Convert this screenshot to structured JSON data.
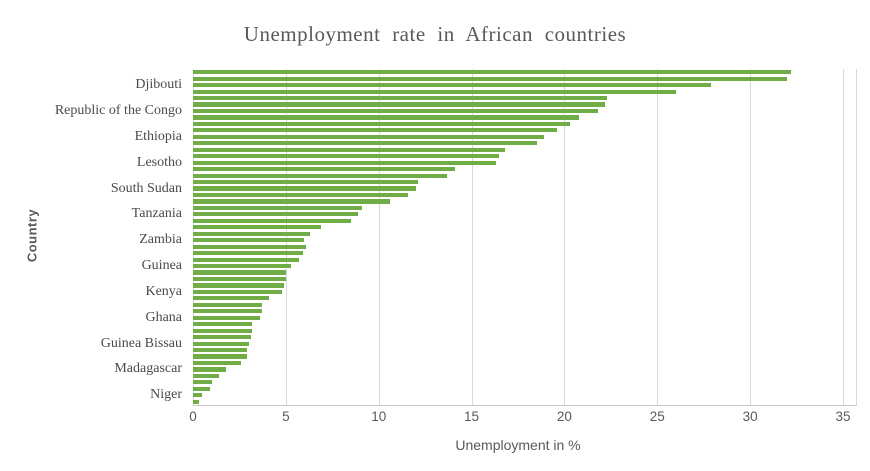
{
  "title": "Unemployment rate in African countries",
  "colors": {
    "bar": "#70AD47",
    "gridline": "#d9d9d9",
    "axis_line": "#c9c9c9",
    "title_text": "#595959",
    "label_text": "#4a4a4a",
    "tick_text": "#595959"
  },
  "chart_data": {
    "type": "bar",
    "orientation": "horizontal",
    "title": "Unemployment rate in African countries",
    "xlabel": "Unemployment in %",
    "ylabel": "Country",
    "xlim": [
      0,
      35
    ],
    "xticks": [
      0,
      5,
      10,
      15,
      20,
      25,
      30,
      35
    ],
    "grid": "vertical-on",
    "legend": "none",
    "bar_color": "#70AD47",
    "note": "52 thin bars sorted descending; only every 4th category carries an axis label",
    "values": [
      32.2,
      32.0,
      27.9,
      26.0,
      22.3,
      22.2,
      21.8,
      20.8,
      20.3,
      19.6,
      18.9,
      18.5,
      16.8,
      16.5,
      16.3,
      14.1,
      13.7,
      12.1,
      12.0,
      11.6,
      10.6,
      9.1,
      8.9,
      8.5,
      6.9,
      6.3,
      6.0,
      6.1,
      5.9,
      5.7,
      5.3,
      5.0,
      5.0,
      4.9,
      4.8,
      4.1,
      3.7,
      3.7,
      3.6,
      3.2,
      3.2,
      3.1,
      3.0,
      2.9,
      2.9,
      2.6,
      1.8,
      1.4,
      1.0,
      0.9,
      0.5,
      0.3
    ],
    "labels": [
      {
        "name": "Djibouti",
        "bar_index": 3,
        "value": 27.9
      },
      {
        "name": "Republic of the Congo",
        "bar_index": 7,
        "value": 21.8
      },
      {
        "name": "Ethiopia",
        "bar_index": 11,
        "value": 18.9
      },
      {
        "name": "Lesotho",
        "bar_index": 15,
        "value": 16.3
      },
      {
        "name": "South Sudan",
        "bar_index": 19,
        "value": 12.0
      },
      {
        "name": "Tanzania",
        "bar_index": 23,
        "value": 8.9
      },
      {
        "name": "Zambia",
        "bar_index": 27,
        "value": 6.0
      },
      {
        "name": "Guinea",
        "bar_index": 31,
        "value": 5.3
      },
      {
        "name": "Kenya",
        "bar_index": 35,
        "value": 4.8
      },
      {
        "name": "Ghana",
        "bar_index": 39,
        "value": 3.6
      },
      {
        "name": "Guinea Bissau",
        "bar_index": 43,
        "value": 3.0
      },
      {
        "name": "Madagascar",
        "bar_index": 47,
        "value": 1.8
      },
      {
        "name": "Niger",
        "bar_index": 51,
        "value": 0.5
      }
    ]
  }
}
